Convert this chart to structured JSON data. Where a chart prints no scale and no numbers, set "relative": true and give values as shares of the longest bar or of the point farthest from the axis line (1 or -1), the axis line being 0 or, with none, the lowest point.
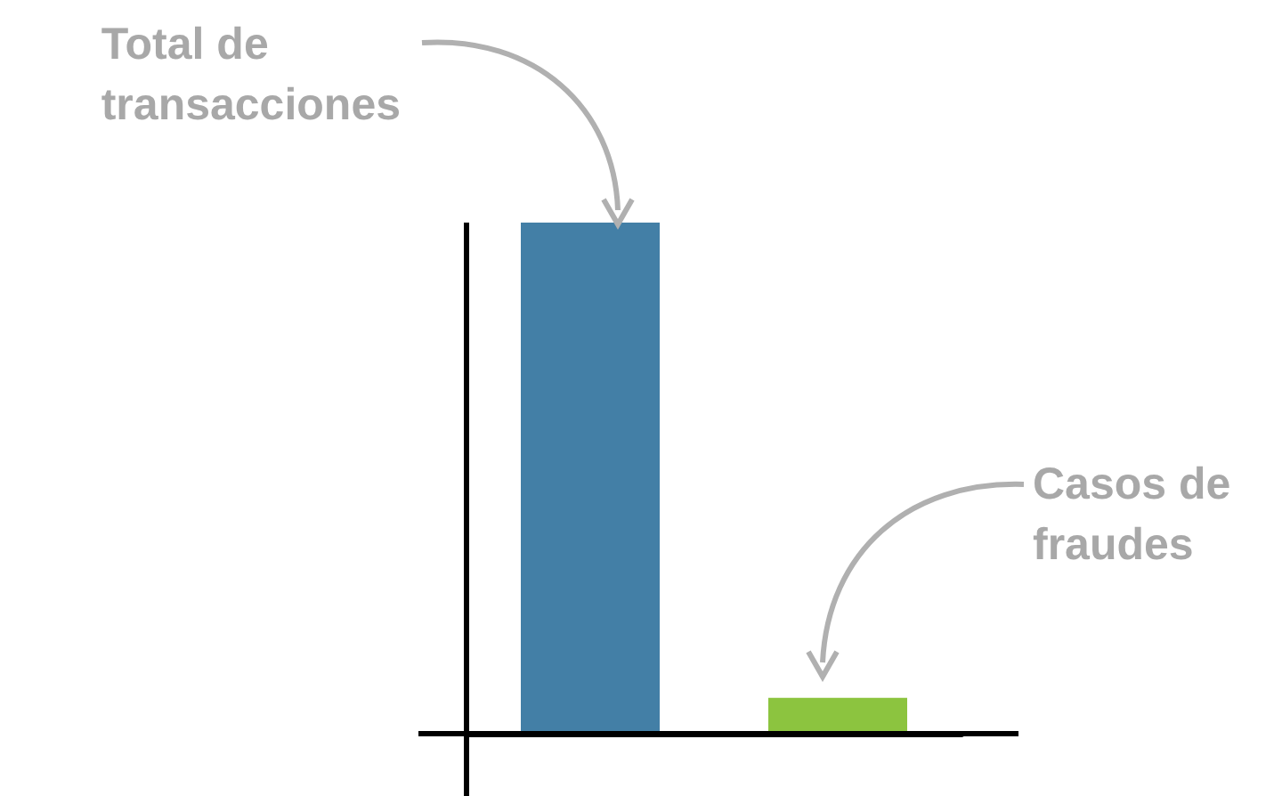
{
  "chart_data": {
    "type": "bar",
    "relative": true,
    "categories": [
      null,
      null
    ],
    "colors": [
      "#437fa6",
      "#8cc43f"
    ],
    "values": [
      1,
      0.07
    ],
    "annotations": [
      "Total de\ntransacciones",
      "Casos de\nfraudes"
    ]
  }
}
